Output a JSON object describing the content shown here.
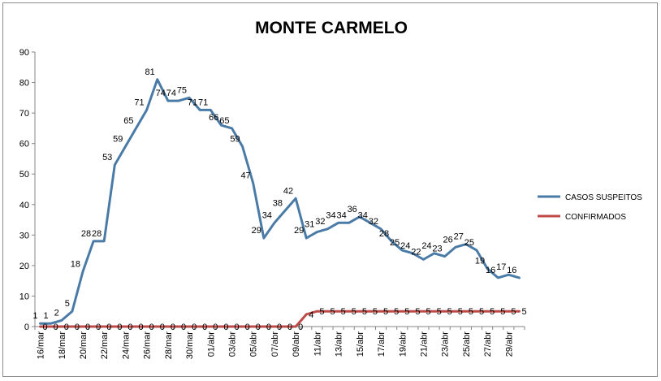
{
  "chart_data": {
    "type": "line",
    "title": "MONTE CARMELO",
    "xlabel": "",
    "ylabel": "",
    "ylim": [
      0,
      90
    ],
    "yticks": [
      0,
      10,
      20,
      30,
      40,
      50,
      60,
      70,
      80,
      90
    ],
    "grid": false,
    "legend_position": "right",
    "categories": [
      "16/mar",
      "17/mar",
      "18/mar",
      "19/mar",
      "20/mar",
      "21/mar",
      "22/mar",
      "23/mar",
      "24/mar",
      "25/mar",
      "26/mar",
      "27/mar",
      "28/mar",
      "29/mar",
      "30/mar",
      "31/mar",
      "01/abr",
      "02/abr",
      "03/abr",
      "04/abr",
      "05/abr",
      "06/abr",
      "07/abr",
      "08/abr",
      "09/abr",
      "10/abr",
      "11/abr",
      "12/abr",
      "13/abr",
      "14/abr",
      "15/abr",
      "16/abr",
      "17/abr",
      "18/abr",
      "19/abr",
      "20/abr",
      "21/abr",
      "22/abr",
      "23/abr",
      "24/abr",
      "25/abr",
      "26/abr",
      "27/abr",
      "28/abr",
      "29/abr",
      "30/abr"
    ],
    "xtick_labels": [
      "16/mar",
      "18/mar",
      "20/mar",
      "22/mar",
      "24/mar",
      "26/mar",
      "28/mar",
      "30/mar",
      "01/abr",
      "03/abr",
      "05/abr",
      "07/abr",
      "09/abr",
      "11/abr",
      "13/abr",
      "15/abr",
      "17/abr",
      "19/abr",
      "21/abr",
      "23/abr",
      "25/abr",
      "27/abr",
      "29/abr"
    ],
    "series": [
      {
        "name": "CASOS SUSPEITOS",
        "color": "#4a7ba7",
        "values": [
          1,
          1,
          2,
          5,
          18,
          28,
          28,
          53,
          59,
          65,
          71,
          81,
          74,
          74,
          75,
          71,
          71,
          66,
          65,
          59,
          47,
          29,
          34,
          38,
          42,
          29,
          31,
          32,
          34,
          34,
          36,
          34,
          32,
          28,
          25,
          24,
          22,
          24,
          23,
          26,
          27,
          25,
          19,
          16,
          17,
          16
        ]
      },
      {
        "name": "CONFIRMADOS",
        "color": "#be4b48",
        "values": [
          0,
          0,
          0,
          0,
          0,
          0,
          0,
          0,
          0,
          0,
          0,
          0,
          0,
          0,
          0,
          0,
          0,
          0,
          0,
          0,
          0,
          0,
          0,
          0,
          0,
          4,
          5,
          5,
          5,
          5,
          5,
          5,
          5,
          5,
          5,
          5,
          5,
          5,
          5,
          5,
          5,
          5,
          5,
          5,
          5,
          5
        ]
      }
    ]
  }
}
